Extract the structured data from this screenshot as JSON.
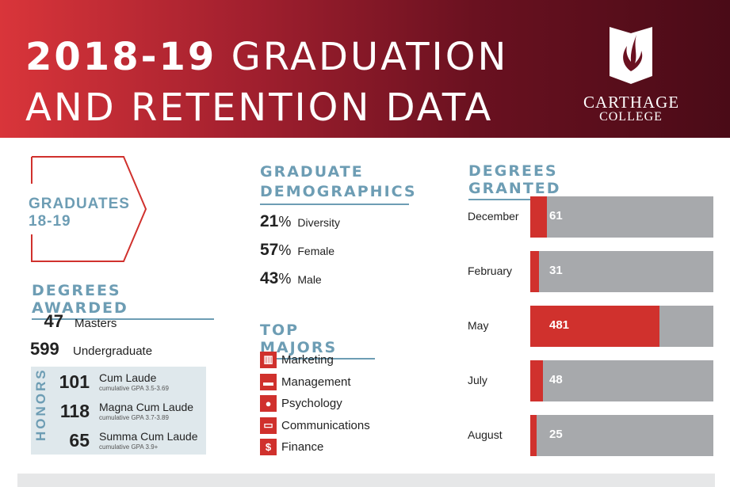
{
  "header": {
    "title_year": "2018-19",
    "title_line1_rest": "GRADUATION",
    "title_line2": "AND RETENTION DATA",
    "logo_name": "CARTHAGE",
    "logo_sub": "COLLEGE"
  },
  "graduates": {
    "label_line1": "GRADUATES",
    "label_line2": "18-19"
  },
  "degrees_awarded": {
    "heading": "DEGREES AWARDED",
    "items": [
      {
        "count": "47",
        "label": "Masters"
      },
      {
        "count": "599",
        "label": "Undergraduate"
      }
    ]
  },
  "honors": {
    "label": "HONORS",
    "items": [
      {
        "count": "101",
        "name": "Cum Laude",
        "gpa": "cumulative GPA 3.5-3.69"
      },
      {
        "count": "118",
        "name": "Magna Cum Laude",
        "gpa": "cumulative GPA 3.7-3.89"
      },
      {
        "count": "65",
        "name": "Summa Cum Laude",
        "gpa": "cumulative GPA 3.9+"
      }
    ]
  },
  "demographics": {
    "heading_line1": "GRADUATE",
    "heading_line2": "DEMOGRAPHICS",
    "items": [
      {
        "value": "21",
        "unit": "%",
        "label": "Diversity"
      },
      {
        "value": "57",
        "unit": "%",
        "label": "Female"
      },
      {
        "value": "43",
        "unit": "%",
        "label": "Male"
      }
    ]
  },
  "top_majors": {
    "heading": "TOP MAJORS",
    "items": [
      {
        "label": "Marketing",
        "icon": "chart-icon"
      },
      {
        "label": "Management",
        "icon": "briefcase-icon"
      },
      {
        "label": "Psychology",
        "icon": "head-icon"
      },
      {
        "label": "Communications",
        "icon": "speech-bubble-icon"
      },
      {
        "label": "Finance",
        "icon": "dollar-icon"
      }
    ]
  },
  "colors": {
    "red": "#d0312d",
    "blue": "#6d9db4",
    "gray": "#a7a9ac"
  },
  "chart_data": {
    "type": "bar",
    "title": "DEGREES GRANTED",
    "categories": [
      "December",
      "February",
      "May",
      "July",
      "August"
    ],
    "values": [
      61,
      31,
      481,
      48,
      25
    ],
    "orientation": "horizontal"
  }
}
